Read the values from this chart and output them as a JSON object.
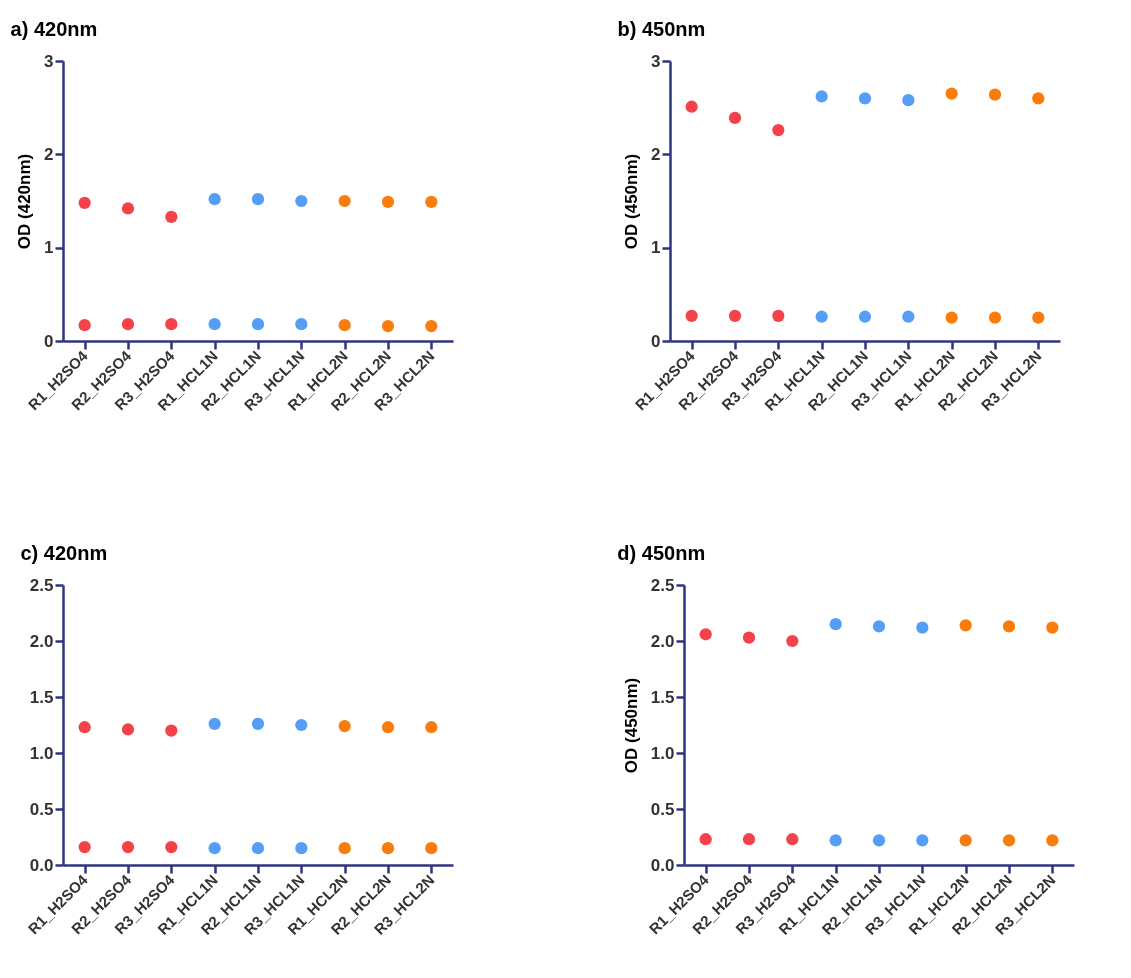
{
  "chart_data": [
    {
      "type": "scatter",
      "title": "a) 420nm",
      "ylabel": "OD (420nm)",
      "categories": [
        "R1_H2SO4",
        "R2_H2SO4",
        "R3_H2SO4",
        "R1_HCL1N",
        "R2_HCL1N",
        "R3_HCL1N",
        "R1_HCL2N",
        "R2_HCL2N",
        "R3_HCL2N"
      ],
      "series": [
        {
          "colors": [
            "#f5424a",
            "#f5424a",
            "#f5424a",
            "#559ef7",
            "#559ef7",
            "#559ef7",
            "#fa7d0c",
            "#fa7d0c",
            "#fa7d0c"
          ],
          "values": [
            1.48,
            1.42,
            1.33,
            1.52,
            1.52,
            1.5,
            1.5,
            1.49,
            1.49
          ]
        },
        {
          "colors": [
            "#f5424a",
            "#f5424a",
            "#f5424a",
            "#559ef7",
            "#559ef7",
            "#559ef7",
            "#fa7d0c",
            "#fa7d0c",
            "#fa7d0c"
          ],
          "values": [
            0.17,
            0.18,
            0.18,
            0.18,
            0.18,
            0.18,
            0.17,
            0.16,
            0.16
          ]
        }
      ],
      "ylim": [
        0,
        3
      ],
      "yticks": [
        0,
        1,
        2,
        3
      ],
      "marker": "circle",
      "grid": false
    },
    {
      "type": "scatter",
      "title": "b) 450nm",
      "ylabel": "OD (450nm)",
      "categories": [
        "R1_H2SO4",
        "R2_H2SO4",
        "R3_H2SO4",
        "R1_HCL1N",
        "R2_HCL1N",
        "R3_HCL1N",
        "R1_HCL2N",
        "R2_HCL2N",
        "R3_HCL2N"
      ],
      "series": [
        {
          "colors": [
            "#f5424a",
            "#f5424a",
            "#f5424a",
            "#559ef7",
            "#559ef7",
            "#559ef7",
            "#fa7d0c",
            "#fa7d0c",
            "#fa7d0c"
          ],
          "values": [
            2.51,
            2.39,
            2.26,
            2.62,
            2.6,
            2.58,
            2.65,
            2.64,
            2.6
          ]
        },
        {
          "colors": [
            "#f5424a",
            "#f5424a",
            "#f5424a",
            "#559ef7",
            "#559ef7",
            "#559ef7",
            "#fa7d0c",
            "#fa7d0c",
            "#fa7d0c"
          ],
          "values": [
            0.27,
            0.27,
            0.27,
            0.26,
            0.26,
            0.26,
            0.25,
            0.25,
            0.25
          ]
        }
      ],
      "ylim": [
        0,
        3
      ],
      "yticks": [
        0,
        1,
        2,
        3
      ],
      "marker": "circle",
      "grid": false
    },
    {
      "type": "scatter",
      "title": "c) 420nm",
      "categories": [
        "R1_H2SO4",
        "R2_H2SO4",
        "R3_H2SO4",
        "R1_HCL1N",
        "R2_HCL1N",
        "R3_HCL1N",
        "R1_HCL2N",
        "R2_HCL2N",
        "R3_HCL2N"
      ],
      "series": [
        {
          "colors": [
            "#f5424a",
            "#f5424a",
            "#f5424a",
            "#559ef7",
            "#559ef7",
            "#559ef7",
            "#fa7d0c",
            "#fa7d0c",
            "#fa7d0c"
          ],
          "values": [
            1.23,
            1.21,
            1.2,
            1.26,
            1.26,
            1.25,
            1.24,
            1.23,
            1.23
          ]
        },
        {
          "colors": [
            "#f5424a",
            "#f5424a",
            "#f5424a",
            "#559ef7",
            "#559ef7",
            "#559ef7",
            "#fa7d0c",
            "#fa7d0c",
            "#fa7d0c"
          ],
          "values": [
            0.16,
            0.16,
            0.16,
            0.15,
            0.15,
            0.15,
            0.15,
            0.15,
            0.15
          ]
        }
      ],
      "ylim": [
        0,
        2.5
      ],
      "yticks": [
        {
          "value": 0,
          "label": "0.0"
        },
        {
          "value": 0.5,
          "label": "0.5"
        },
        {
          "value": 1,
          "label": "1.0"
        },
        {
          "value": 1.5,
          "label": "1.5"
        },
        {
          "value": 2,
          "label": "2.0"
        },
        {
          "value": 2.5,
          "label": "2.5"
        }
      ],
      "marker": "circle",
      "grid": false
    },
    {
      "type": "scatter",
      "title": "d) 450nm",
      "ylabel": "OD (450nm)",
      "categories": [
        "R1_H2SO4",
        "R2_H2SO4",
        "R3_H2SO4",
        "R1_HCL1N",
        "R2_HCL1N",
        "R3_HCL1N",
        "R1_HCL2N",
        "R2_HCL2N",
        "R3_HCL2N"
      ],
      "series": [
        {
          "colors": [
            "#f5424a",
            "#f5424a",
            "#f5424a",
            "#559ef7",
            "#559ef7",
            "#559ef7",
            "#fa7d0c",
            "#fa7d0c",
            "#fa7d0c"
          ],
          "values": [
            2.06,
            2.03,
            2.0,
            2.15,
            2.13,
            2.12,
            2.14,
            2.13,
            2.12
          ]
        },
        {
          "colors": [
            "#f5424a",
            "#f5424a",
            "#f5424a",
            "#559ef7",
            "#559ef7",
            "#559ef7",
            "#fa7d0c",
            "#fa7d0c",
            "#fa7d0c"
          ],
          "values": [
            0.23,
            0.23,
            0.23,
            0.22,
            0.22,
            0.22,
            0.22,
            0.22,
            0.22
          ]
        }
      ],
      "ylim": [
        0,
        2.5
      ],
      "yticks": [
        {
          "value": 0,
          "label": "0.0"
        },
        {
          "value": 0.5,
          "label": "0.5"
        },
        {
          "value": 1,
          "label": "1.0"
        },
        {
          "value": 1.5,
          "label": "1.5"
        },
        {
          "value": 2,
          "label": "2.0"
        },
        {
          "value": 2.5,
          "label": "2.5"
        }
      ],
      "marker": "circle",
      "grid": false
    }
  ]
}
